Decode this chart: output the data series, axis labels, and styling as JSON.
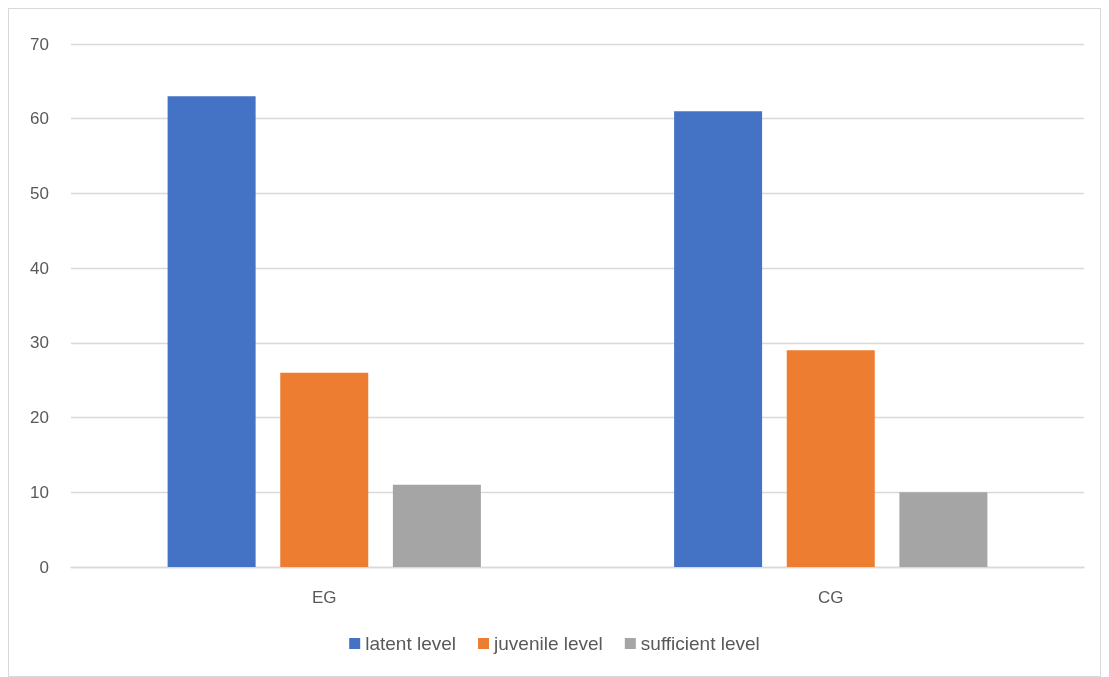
{
  "chart_data": {
    "type": "bar",
    "categories": [
      "EG",
      "CG"
    ],
    "series": [
      {
        "name": "latent level",
        "color": "#4472c4",
        "values": [
          63,
          61
        ]
      },
      {
        "name": "juvenile level",
        "color": "#ed7d31",
        "values": [
          26,
          29
        ]
      },
      {
        "name": "sufficient level",
        "color": "#a5a5a5",
        "values": [
          11,
          10
        ]
      }
    ],
    "ylim": [
      0,
      70
    ],
    "yticks": [
      0,
      10,
      20,
      30,
      40,
      50,
      60,
      70
    ],
    "grid": "y",
    "legend": "bottom"
  }
}
